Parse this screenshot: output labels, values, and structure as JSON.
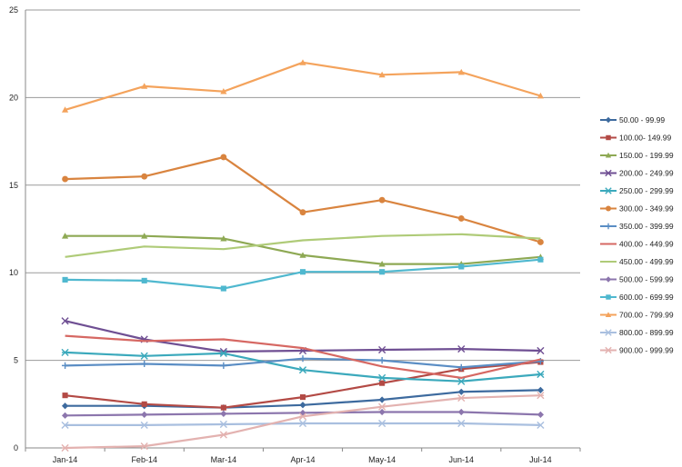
{
  "chart_data": {
    "type": "line",
    "categories": [
      "Jan-14",
      "Feb-14",
      "Mar-14",
      "Apr-14",
      "May-14",
      "Jun-14",
      "Jul-14"
    ],
    "ylim": [
      0,
      25
    ],
    "yticks": [
      0,
      5,
      10,
      15,
      20,
      25
    ],
    "grid": true,
    "legend_position": "right",
    "series": [
      {
        "name": "50.00 - 99.99",
        "color": "#3d6a9e",
        "marker": "diamond",
        "values": [
          2.4,
          2.4,
          2.3,
          2.45,
          2.75,
          3.2,
          3.3
        ]
      },
      {
        "name": "100.00- 149.99",
        "color": "#b34a45",
        "marker": "square",
        "values": [
          3.0,
          2.5,
          2.3,
          2.9,
          3.7,
          4.5,
          4.9
        ]
      },
      {
        "name": "150.00 - 199.99",
        "color": "#8ea954",
        "marker": "triangle",
        "values": [
          12.1,
          12.1,
          11.95,
          11.0,
          10.5,
          10.5,
          10.9
        ]
      },
      {
        "name": "200.00 - 249.99",
        "color": "#6f4f93",
        "marker": "x",
        "values": [
          7.25,
          6.2,
          5.5,
          5.55,
          5.6,
          5.65,
          5.55
        ]
      },
      {
        "name": "250.00 - 299.99",
        "color": "#3ba9bc",
        "marker": "xbar",
        "values": [
          5.45,
          5.25,
          5.4,
          4.45,
          4.0,
          3.8,
          4.2
        ]
      },
      {
        "name": "300.00 - 349.99",
        "color": "#d9843f",
        "marker": "circle",
        "values": [
          15.35,
          15.5,
          16.6,
          13.45,
          14.15,
          13.1,
          11.75
        ]
      },
      {
        "name": "350.00 - 399.99",
        "color": "#5a8dc4",
        "marker": "plus",
        "values": [
          4.7,
          4.8,
          4.7,
          5.1,
          5.0,
          4.6,
          4.95
        ]
      },
      {
        "name": "400.00 - 449.99",
        "color": "#d66863",
        "marker": "none",
        "values": [
          6.4,
          6.1,
          6.2,
          5.7,
          4.65,
          4.0,
          5.05
        ]
      },
      {
        "name": "450.00 - 499.99",
        "color": "#afcb78",
        "marker": "none",
        "values": [
          10.9,
          11.5,
          11.35,
          11.85,
          12.1,
          12.2,
          11.95
        ]
      },
      {
        "name": "500.00 - 599.99",
        "color": "#8c76ad",
        "marker": "diamond",
        "values": [
          1.85,
          1.9,
          1.95,
          2.0,
          2.05,
          2.05,
          1.9
        ]
      },
      {
        "name": "600.00 - 699.99",
        "color": "#4fb8cf",
        "marker": "square",
        "values": [
          9.6,
          9.55,
          9.1,
          10.05,
          10.05,
          10.35,
          10.75
        ]
      },
      {
        "name": "700.00 - 799.99",
        "color": "#f4a35c",
        "marker": "triangle",
        "values": [
          19.3,
          20.65,
          20.35,
          22.0,
          21.3,
          21.45,
          20.1
        ]
      },
      {
        "name": "800.00 - 899.99",
        "color": "#a9bfdf",
        "marker": "x",
        "values": [
          1.3,
          1.3,
          1.35,
          1.4,
          1.4,
          1.4,
          1.3
        ]
      },
      {
        "name": "900.00 - 999.99",
        "color": "#e3b2b0",
        "marker": "xbar",
        "values": [
          0.0,
          0.1,
          0.75,
          1.8,
          2.35,
          2.85,
          3.0
        ]
      }
    ]
  }
}
